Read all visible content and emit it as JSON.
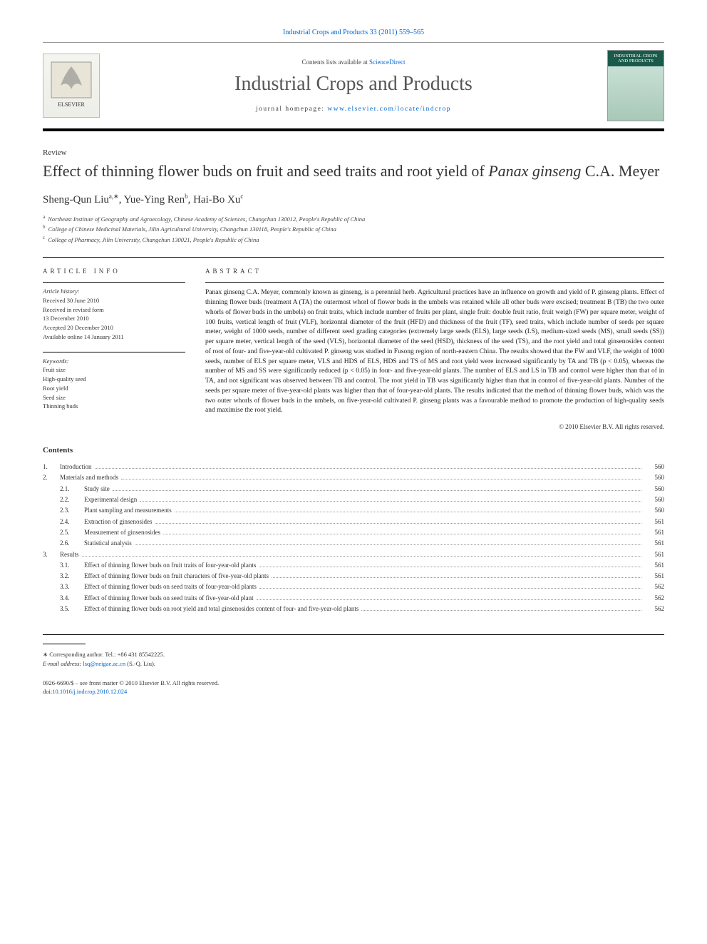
{
  "top_link": {
    "prefix": "",
    "journal": "Industrial Crops and Products",
    "citation": "33 (2011) 559–565"
  },
  "header": {
    "contents_prefix": "Contents lists available at ",
    "contents_link": "ScienceDirect",
    "journal_title": "Industrial Crops and Products",
    "homepage_prefix": "journal homepage: ",
    "homepage_link": "www.elsevier.com/locate/indcrop",
    "publisher_name": "ELSEVIER",
    "cover_title": "INDUSTRIAL CROPS AND PRODUCTS"
  },
  "article": {
    "type": "Review",
    "title_pre": "Effect of thinning flower buds on fruit and seed traits and root yield of ",
    "title_species": "Panax ginseng",
    "title_post": " C.A. Meyer",
    "authors_html": "Sheng-Qun Liu",
    "author1": "Sheng-Qun Liu",
    "author1_sup": "a,∗",
    "author2": "Yue-Ying Ren",
    "author2_sup": "b",
    "author3": "Hai-Bo Xu",
    "author3_sup": "c",
    "affiliations": [
      {
        "sup": "a",
        "text": "Northeast Institute of Geography and Agroecology, Chinese Academy of Sciences, Changchun 130012, People's Republic of China"
      },
      {
        "sup": "b",
        "text": "College of Chinese Medicinal Materials, Jilin Agricultural University, Changchun 130118, People's Republic of China"
      },
      {
        "sup": "c",
        "text": "College of Pharmacy, Jilin University, Changchun 130021, People's Republic of China"
      }
    ]
  },
  "info": {
    "label": "article info",
    "history_label": "Article history:",
    "history": [
      "Received 30 June 2010",
      "Received in revised form",
      "13 December 2010",
      "Accepted 20 December 2010",
      "Available online 14 January 2011"
    ],
    "keywords_label": "Keywords:",
    "keywords": [
      "Fruit size",
      "High-quality seed",
      "Root yield",
      "Seed size",
      "Thinning buds"
    ]
  },
  "abstract": {
    "label": "abstract",
    "text": "Panax ginseng C.A. Meyer, commonly known as ginseng, is a perennial herb. Agricultural practices have an influence on growth and yield of P. ginseng plants. Effect of thinning flower buds (treatment A (TA) the outermost whorl of flower buds in the umbels was retained while all other buds were excised; treatment B (TB) the two outer whorls of flower buds in the umbels) on fruit traits, which include number of fruits per plant, single fruit: double fruit ratio, fruit weigh (FW) per square meter, weight of 100 fruits, vertical length of fruit (VLF), horizontal diameter of the fruit (HFD) and thickness of the fruit (TF), seed traits, which include number of seeds per square meter, weight of 1000 seeds, number of different seed grading categories (extremely large seeds (ELS), large seeds (LS), medium-sized seeds (MS), small seeds (SS)) per square meter, vertical length of the seed (VLS), horizontal diameter of the seed (HSD), thickness of the seed (TS), and the root yield and total ginsenosides content of root of four- and five-year-old cultivated P. ginseng was studied in Fusong region of north-eastern China. The results showed that the FW and VLF, the weight of 1000 seeds, number of ELS per square meter, VLS and HDS of ELS, HDS and TS of MS and root yield were increased significantly by TA and TB (p < 0.05), whereas the number of MS and SS were significantly reduced (p < 0.05) in four- and five-year-old plants. The number of ELS and LS in TB and control were higher than that of in TA, and not significant was observed between TB and control. The root yield in TB was significantly higher than that in control of five-year-old plants. Number of the seeds per square meter of five-year-old plants was higher than that of four-year-old plants. The results indicated that the method of thinning flower buds, which was the two outer whorls of flower buds in the umbels, on five-year-old cultivated P. ginseng plants was a favourable method to promote the production of high-quality seeds and maximise the root yield.",
    "copyright": "© 2010 Elsevier B.V. All rights reserved."
  },
  "contents": {
    "heading": "Contents",
    "items": [
      {
        "num": "1.",
        "title": "Introduction",
        "page": "560",
        "sub": false
      },
      {
        "num": "2.",
        "title": "Materials and methods",
        "page": "560",
        "sub": false
      },
      {
        "num": "2.1.",
        "title": "Study site",
        "page": "560",
        "sub": true
      },
      {
        "num": "2.2.",
        "title": "Experimental design",
        "page": "560",
        "sub": true
      },
      {
        "num": "2.3.",
        "title": "Plant sampling and measurements",
        "page": "560",
        "sub": true
      },
      {
        "num": "2.4.",
        "title": "Extraction of ginsenosides",
        "page": "561",
        "sub": true
      },
      {
        "num": "2.5.",
        "title": "Measurement of ginsenosides",
        "page": "561",
        "sub": true
      },
      {
        "num": "2.6.",
        "title": "Statistical analysis",
        "page": "561",
        "sub": true
      },
      {
        "num": "3.",
        "title": "Results",
        "page": "561",
        "sub": false
      },
      {
        "num": "3.1.",
        "title": "Effect of thinning flower buds on fruit traits of four-year-old plants",
        "page": "561",
        "sub": true
      },
      {
        "num": "3.2.",
        "title": "Effect of thinning flower buds on fruit characters of five-year-old plants",
        "page": "561",
        "sub": true
      },
      {
        "num": "3.3.",
        "title": "Effect of thinning flower buds on seed traits of four-year-old plants",
        "page": "562",
        "sub": true
      },
      {
        "num": "3.4.",
        "title": "Effect of thinning flower buds on seed traits of five-year-old plant",
        "page": "562",
        "sub": true
      },
      {
        "num": "3.5.",
        "title": "Effect of thinning flower buds on root yield and total ginsenosides content of four- and five-year-old plants",
        "page": "562",
        "sub": true
      }
    ]
  },
  "footer": {
    "corr_label": "∗ Corresponding author. Tel.: +86 431 85542225.",
    "email_label": "E-mail address: ",
    "email": "lsq@neigae.ac.cn",
    "email_suffix": " (S.-Q. Liu).",
    "issn_line": "0926-6690/$ – see front matter © 2010 Elsevier B.V. All rights reserved.",
    "doi_prefix": "doi:",
    "doi": "10.1016/j.indcrop.2010.12.024"
  },
  "colors": {
    "link": "#0066cc",
    "text": "#333333",
    "rule": "#000000"
  }
}
